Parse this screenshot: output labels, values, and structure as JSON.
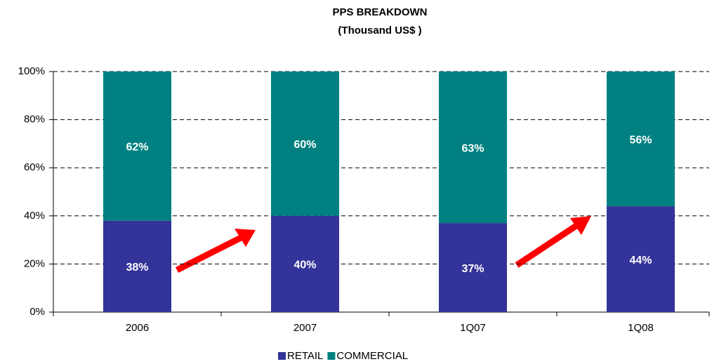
{
  "chart_data": {
    "type": "stacked_bar",
    "title": "PPS BREAKDOWN",
    "subtitle": "(Thousand US$ )",
    "categories": [
      "2006",
      "2007",
      "1Q07",
      "1Q08"
    ],
    "series": [
      {
        "name": "RETAIL",
        "color": "#333399",
        "values": [
          38,
          40,
          37,
          44
        ],
        "value_labels": [
          "38%",
          "40%",
          "37%",
          "44%"
        ]
      },
      {
        "name": "COMMERCIAL",
        "color": "#008080",
        "values": [
          62,
          60,
          63,
          56
        ],
        "value_labels": [
          "62%",
          "60%",
          "63%",
          "56%"
        ]
      }
    ],
    "ylim": [
      0,
      100
    ],
    "yticks": [
      {
        "value": 0,
        "label": "0%"
      },
      {
        "value": 20,
        "label": "20%"
      },
      {
        "value": 40,
        "label": "40%"
      },
      {
        "value": 60,
        "label": "60%"
      },
      {
        "value": 80,
        "label": "80%"
      },
      {
        "value": 100,
        "label": "100%"
      }
    ],
    "grid": true,
    "legend": "bottom"
  }
}
